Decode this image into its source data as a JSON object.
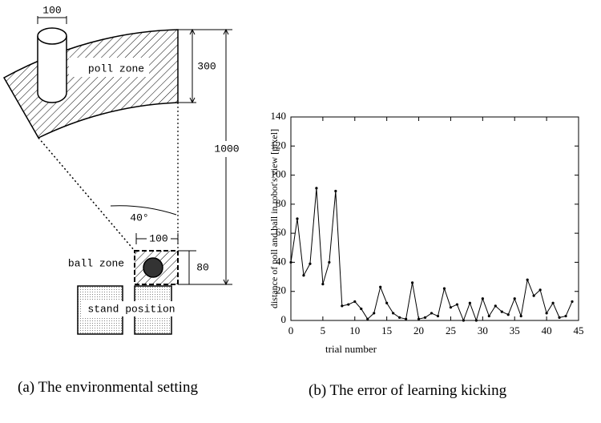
{
  "diagram": {
    "cylinder_width": "100",
    "poll_zone": "poll zone",
    "zone_depth": "300",
    "distance": "1000",
    "angle": "40°",
    "ball_zone_width": "100",
    "ball_zone_depth": "80",
    "ball_zone": "ball zone",
    "stand_position": "stand position",
    "caption": "(a) The environmental setting"
  },
  "chart_data": {
    "type": "line",
    "caption": "(b) The error of learning kicking",
    "x_label": "trial number",
    "y_label": "distance of poll and ball in robot's view [pixel]",
    "x": [
      0,
      1,
      2,
      3,
      4,
      5,
      6,
      7,
      8,
      9,
      10,
      11,
      12,
      13,
      14,
      15,
      16,
      17,
      18,
      19,
      20,
      21,
      22,
      23,
      24,
      25,
      26,
      27,
      28,
      29,
      30,
      31,
      32,
      33,
      34,
      35,
      36,
      37,
      38,
      39,
      40,
      41,
      42,
      43,
      44
    ],
    "values": [
      40,
      70,
      31,
      39,
      91,
      25,
      40,
      89,
      10,
      11,
      13,
      8,
      1,
      5,
      23,
      12,
      5,
      2,
      1,
      26,
      1,
      2,
      5,
      3,
      22,
      9,
      11,
      0,
      12,
      0,
      15,
      3,
      10,
      6,
      4,
      15,
      3,
      28,
      17,
      21,
      5,
      12,
      2,
      3,
      13
    ],
    "color": "#000000",
    "xlim": [
      0,
      45
    ],
    "xticks": [
      0,
      5,
      10,
      15,
      20,
      25,
      30,
      35,
      40,
      45
    ],
    "ylim": [
      0,
      140
    ],
    "yticks": [
      0,
      20,
      40,
      60,
      80,
      100,
      120,
      140
    ]
  }
}
